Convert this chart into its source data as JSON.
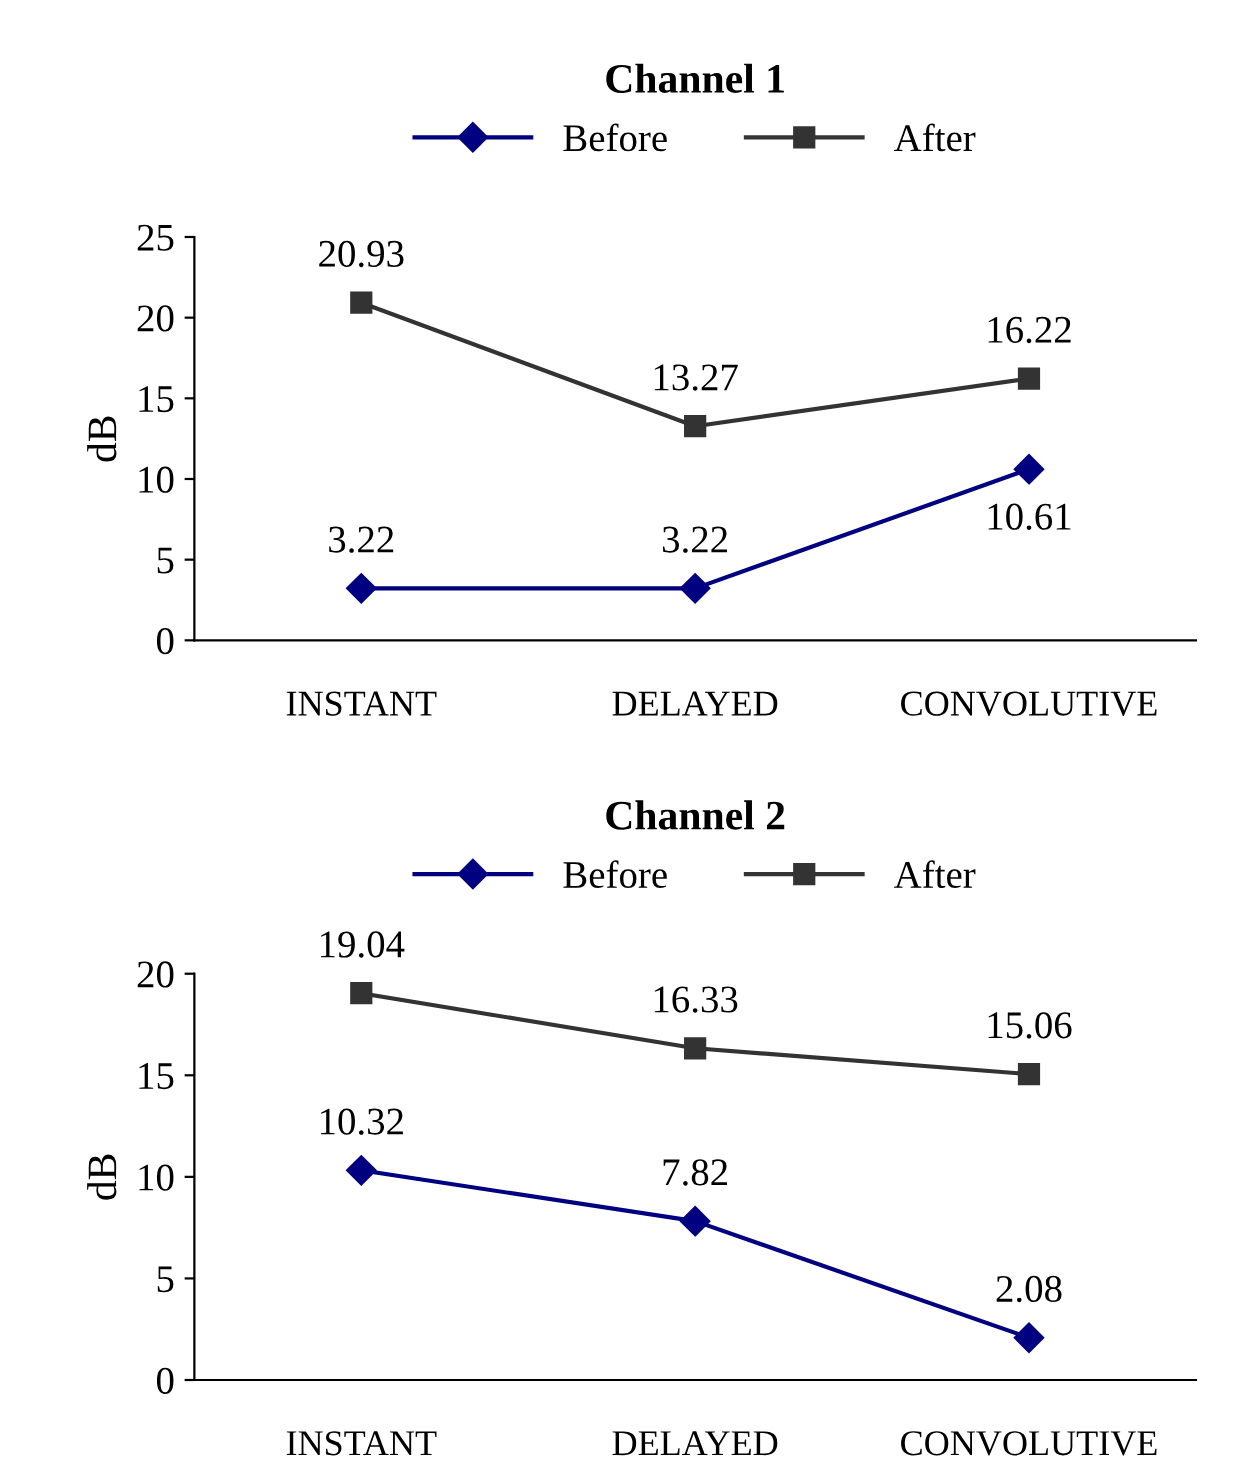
{
  "chart_data": [
    {
      "type": "line",
      "title": "Channel 1",
      "ylabel": "dB",
      "categories": [
        "INSTANT",
        "DELAYED",
        "CONVOLUTIVE"
      ],
      "ylim": [
        0,
        25
      ],
      "yticks": [
        0,
        5,
        10,
        15,
        20,
        25
      ],
      "legend": "top",
      "grid": false,
      "data_labels": true,
      "series": [
        {
          "name": "Before",
          "color": "#000080",
          "marker": "diamond",
          "values": [
            3.22,
            3.22,
            10.61
          ]
        },
        {
          "name": "After",
          "color": "#333333",
          "marker": "square",
          "values": [
            20.93,
            13.27,
            16.22
          ]
        }
      ]
    },
    {
      "type": "line",
      "title": "Channel 2",
      "ylabel": "dB",
      "categories": [
        "INSTANT",
        "DELAYED",
        "CONVOLUTIVE"
      ],
      "ylim": [
        0,
        20
      ],
      "yticks": [
        0,
        5,
        10,
        15,
        20
      ],
      "legend": "top",
      "grid": false,
      "data_labels": true,
      "series": [
        {
          "name": "Before",
          "color": "#000080",
          "marker": "diamond",
          "values": [
            10.32,
            7.82,
            2.08
          ]
        },
        {
          "name": "After",
          "color": "#333333",
          "marker": "square",
          "values": [
            19.04,
            16.33,
            15.06
          ]
        }
      ]
    }
  ]
}
